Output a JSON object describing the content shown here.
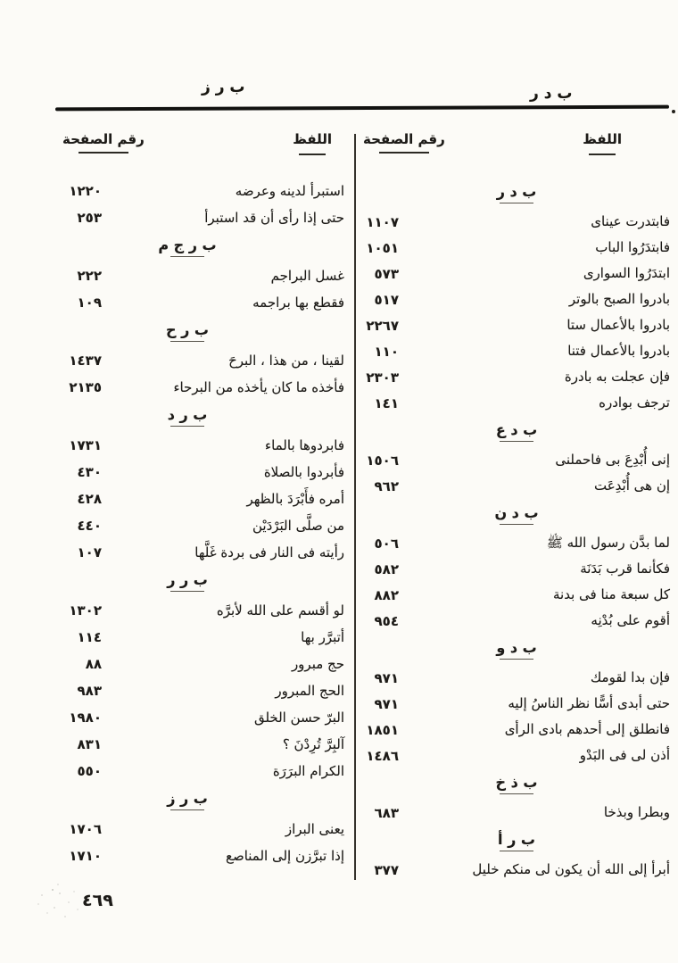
{
  "page": {
    "running_head_left": "ب ر ز",
    "running_head_right": "ب د ر",
    "page_number": "٤٦٩"
  },
  "column_headers": {
    "word": "اللفظ",
    "page_number": "رقم الصفحة"
  },
  "columns": {
    "right": {
      "sections": [
        {
          "root": "ب د ر",
          "entries": [
            {
              "text": "فابتدرت عيناى",
              "page": "١١٠٧"
            },
            {
              "text": "فابتدَرُوا الباب",
              "page": "١٠٥١"
            },
            {
              "text": "ابتدَرُوا السوارى",
              "page": "٥٧٣"
            },
            {
              "text": "بادروا الصبح بالوتر",
              "page": "٥١٧"
            },
            {
              "text": "بادروا بالأعمال ستا",
              "page": "٢٢٦٧"
            },
            {
              "text": "بادروا بالأعمال فتنا",
              "page": "١١٠"
            },
            {
              "text": "فإن عجلت به بادرة",
              "page": "٢٣٠٣"
            },
            {
              "text": "ترجف بوادره",
              "page": "١٤١"
            }
          ]
        },
        {
          "root": "ب د ع",
          "entries": [
            {
              "text": "إنى أُبْدِعَ بى فاحملنى",
              "page": "١٥٠٦"
            },
            {
              "text": "إن هى أُبْدِعَت",
              "page": "٩٦٢"
            }
          ]
        },
        {
          "root": "ب د ن",
          "entries": [
            {
              "text": "لما بدَّن رسول الله ﷺ",
              "page": "٥٠٦"
            },
            {
              "text": "فكأنما قرب بَدَنَة",
              "page": "٥٨٢"
            },
            {
              "text": "كل سبعة منا فى بدنة",
              "page": "٨٨٢"
            },
            {
              "text": "أقوم على بُدْنِه",
              "page": "٩٥٤"
            }
          ]
        },
        {
          "root": "ب د و",
          "entries": [
            {
              "text": "فإن بدا لقومك",
              "page": "٩٧١"
            },
            {
              "text": "حتى أبدى أسًّا نظر الناسُ إليه",
              "page": "٩٧١"
            },
            {
              "text": "فانطلق إلى أحدهم بادى الرأى",
              "page": "١٨٥١"
            },
            {
              "text": "أذن لى فى البَدْو",
              "page": "١٤٨٦"
            }
          ]
        },
        {
          "root": "ب ذ خ",
          "entries": [
            {
              "text": "وبطرا وبذخا",
              "page": "٦٨٣"
            }
          ]
        },
        {
          "root": "ب ر أ",
          "entries": [
            {
              "text": "أبرأ إلى الله أن يكون لى منكم خليل",
              "page": "٣٧٧"
            }
          ]
        }
      ]
    },
    "left": {
      "sections": [
        {
          "root": "",
          "entries": [
            {
              "text": "استبرأ لدينه وعرضه",
              "page": "١٢٢٠"
            },
            {
              "text": "حتى إذا رأى أن قد استبرأ",
              "page": "٢٥٣"
            }
          ]
        },
        {
          "root": "ب ر ج م",
          "entries": [
            {
              "text": "غسل البراجم",
              "page": "٢٢٢"
            },
            {
              "text": "فقطع بها براجمه",
              "page": "١٠٩"
            }
          ]
        },
        {
          "root": "ب ر ح",
          "entries": [
            {
              "text": "لقينا ، من هذا ، البرحَ",
              "page": "١٤٣٧"
            },
            {
              "text": "فأخذه ما كان يأخذه من البرحاء",
              "page": "٢١٣٥"
            }
          ]
        },
        {
          "root": "ب ر د",
          "entries": [
            {
              "text": "فابردوها بالماء",
              "page": "١٧٣١"
            },
            {
              "text": "فأبردوا بالصلاة",
              "page": "٤٣٠"
            },
            {
              "text": "أمره فأَبْرَدَ بالظهر",
              "page": "٤٢٨"
            },
            {
              "text": "من صلَّى البَرْدَيْن",
              "page": "٤٤٠"
            },
            {
              "text": "رأيته فى النار فى بردة غَلَّها",
              "page": "١٠٧"
            }
          ]
        },
        {
          "root": "ب ر ر",
          "entries": [
            {
              "text": "لو أقسم على الله لأبرَّه",
              "page": "١٣٠٢"
            },
            {
              "text": "أتبرَّر بها",
              "page": "١١٤"
            },
            {
              "text": "حج مبرور",
              "page": "٨٨"
            },
            {
              "text": "الحج المبرور",
              "page": "٩٨٣"
            },
            {
              "text": "البرّ حسن الخلق",
              "page": "١٩٨٠"
            },
            {
              "text": "آلبِرَّ تُرِدْنَ ؟",
              "page": "٨٣١"
            },
            {
              "text": "الكرام البرَرَة",
              "page": "٥٥٠"
            }
          ]
        },
        {
          "root": "ب ر ز",
          "entries": [
            {
              "text": "يعنى البراز",
              "page": "١٧٠٦"
            },
            {
              "text": "إذا تبرَّزن إلى المناصع",
              "page": "١٧١٠"
            }
          ]
        }
      ]
    }
  }
}
